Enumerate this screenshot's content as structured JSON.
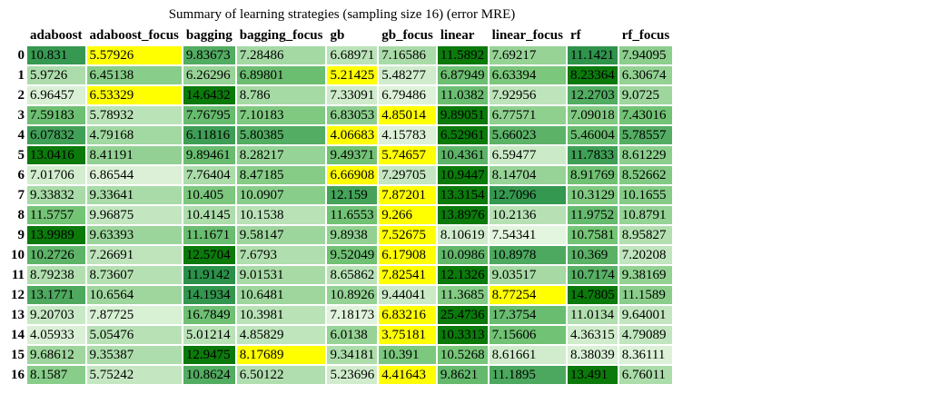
{
  "chart_data": {
    "type": "table",
    "title": "Summary of learning strategies (sampling size 16) (error MRE)",
    "columns": [
      "adaboost",
      "adaboost_focus",
      "bagging",
      "bagging_focus",
      "gb",
      "gb_focus",
      "linear",
      "linear_focus",
      "rf",
      "rf_focus"
    ],
    "rows": [
      "0",
      "1",
      "2",
      "3",
      "4",
      "5",
      "6",
      "7",
      "8",
      "9",
      "10",
      "11",
      "12",
      "13",
      "14",
      "15",
      "16"
    ],
    "values": [
      [
        "10.831",
        "5.57926",
        "9.83673",
        "7.28486",
        "6.68971",
        "7.16586",
        "11.5892",
        "7.69217",
        "11.1421",
        "7.94095"
      ],
      [
        "5.9726",
        "6.45138",
        "6.26296",
        "6.89801",
        "5.21425",
        "5.48277",
        "6.87949",
        "6.63394",
        "8.23364",
        "6.30674"
      ],
      [
        "6.96457",
        "6.53329",
        "14.6432",
        "8.786",
        "7.33091",
        "6.79486",
        "11.0382",
        "7.92956",
        "12.2703",
        "9.0725"
      ],
      [
        "7.59183",
        "5.78932",
        "7.76795",
        "7.10183",
        "6.83053",
        "4.85014",
        "9.89051",
        "6.77571",
        "7.09018",
        "7.43016"
      ],
      [
        "6.07832",
        "4.79168",
        "6.11816",
        "5.80385",
        "4.06683",
        "4.15783",
        "6.52961",
        "5.66023",
        "5.46004",
        "5.78557"
      ],
      [
        "13.0416",
        "8.41191",
        "9.89461",
        "8.28217",
        "9.49371",
        "5.74657",
        "10.4361",
        "6.59477",
        "11.7833",
        "8.61229"
      ],
      [
        "7.01706",
        "6.86544",
        "7.76404",
        "8.47185",
        "6.66908",
        "7.29705",
        "10.9447",
        "8.14704",
        "8.91769",
        "8.52662"
      ],
      [
        "9.33832",
        "9.33641",
        "10.405",
        "10.0907",
        "12.159",
        "7.87201",
        "13.3154",
        "12.7096",
        "10.3129",
        "10.1655"
      ],
      [
        "11.5757",
        "9.96875",
        "10.4145",
        "10.1538",
        "11.6553",
        "9.266",
        "13.8976",
        "10.2136",
        "11.9752",
        "10.8791"
      ],
      [
        "13.9989",
        "9.63393",
        "11.1671",
        "9.58147",
        "9.8938",
        "7.52675",
        "8.10619",
        "7.54341",
        "10.7581",
        "8.95827"
      ],
      [
        "10.2726",
        "7.26691",
        "12.5704",
        "7.6793",
        "9.52049",
        "6.17908",
        "10.0986",
        "10.8978",
        "10.369",
        "7.20208"
      ],
      [
        "8.79238",
        "8.73607",
        "11.9142",
        "9.01531",
        "8.65862",
        "7.82541",
        "12.1326",
        "9.03517",
        "10.7174",
        "9.38169"
      ],
      [
        "13.1771",
        "10.6564",
        "14.1934",
        "10.6481",
        "10.8926",
        "9.44041",
        "11.3685",
        "8.77254",
        "14.7805",
        "11.1589"
      ],
      [
        "9.20703",
        "7.87725",
        "16.7849",
        "10.3981",
        "7.18173",
        "6.83216",
        "25.4736",
        "17.3754",
        "11.0134",
        "9.64001"
      ],
      [
        "4.05933",
        "5.05476",
        "5.01214",
        "4.85829",
        "6.0138",
        "3.75181",
        "10.3313",
        "7.15606",
        "4.36315",
        "4.79089"
      ],
      [
        "9.68612",
        "9.35387",
        "12.9475",
        "8.17689",
        "9.34181",
        "10.391",
        "10.5268",
        "8.61661",
        "8.38039",
        "8.36111"
      ],
      [
        "8.1587",
        "5.75242",
        "10.8624",
        "6.50122",
        "5.23696",
        "4.41643",
        "9.8621",
        "11.1895",
        "13.491",
        "6.76011"
      ]
    ],
    "colors": {
      "best": "#ffff00",
      "low": "#e5f5e0",
      "mid": "#74c476",
      "high": "#238b45",
      "max": "#0b7a0b"
    }
  }
}
